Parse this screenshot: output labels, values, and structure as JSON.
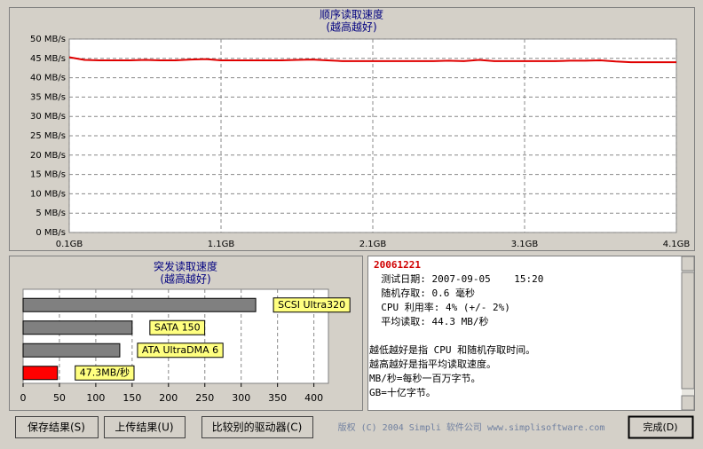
{
  "chart_data": [
    {
      "type": "line",
      "title": "顺序读取速度",
      "subtitle": "(越高越好)",
      "x": [
        0.1,
        0.2,
        0.3,
        0.4,
        0.5,
        0.6,
        0.7,
        0.8,
        0.9,
        1.0,
        1.1,
        1.2,
        1.3,
        1.4,
        1.5,
        1.6,
        1.7,
        1.8,
        1.9,
        2.0,
        2.1,
        2.2,
        2.3,
        2.4,
        2.5,
        2.6,
        2.7,
        2.8,
        2.9,
        3.0,
        3.1,
        3.2,
        3.3,
        3.4,
        3.5,
        3.6,
        3.7,
        3.8,
        3.9,
        4.0,
        4.1
      ],
      "series": [
        {
          "color": "#e00000",
          "values": [
            45.3,
            44.6,
            44.5,
            44.5,
            44.5,
            44.6,
            44.5,
            44.5,
            44.7,
            44.8,
            44.5,
            44.5,
            44.5,
            44.5,
            44.5,
            44.6,
            44.7,
            44.5,
            44.3,
            44.3,
            44.3,
            44.3,
            44.3,
            44.3,
            44.3,
            44.4,
            44.3,
            44.6,
            44.3,
            44.3,
            44.3,
            44.3,
            44.3,
            44.4,
            44.4,
            44.5,
            44.2,
            44.0,
            44.0,
            44.0,
            44.0
          ]
        }
      ],
      "xlim": [
        0.1,
        4.1
      ],
      "xticks": [
        {
          "value": 0.1,
          "label": "0.1GB"
        },
        {
          "value": 1.1,
          "label": "1.1GB"
        },
        {
          "value": 2.1,
          "label": "2.1GB"
        },
        {
          "value": 3.1,
          "label": "3.1GB"
        },
        {
          "value": 4.1,
          "label": "4.1GB"
        }
      ],
      "ylim": [
        0,
        50
      ],
      "yticks": [
        {
          "value": 0,
          "label": "0 MB/s"
        },
        {
          "value": 5,
          "label": "5 MB/s"
        },
        {
          "value": 10,
          "label": "10 MB/s"
        },
        {
          "value": 15,
          "label": "15 MB/s"
        },
        {
          "value": 20,
          "label": "20 MB/s"
        },
        {
          "value": 25,
          "label": "25 MB/s"
        },
        {
          "value": 30,
          "label": "30 MB/s"
        },
        {
          "value": 35,
          "label": "35 MB/s"
        },
        {
          "value": 40,
          "label": "40 MB/s"
        },
        {
          "value": 45,
          "label": "45 MB/s"
        },
        {
          "value": 50,
          "label": "50 MB/s"
        }
      ],
      "grid": true
    },
    {
      "type": "bar",
      "orientation": "horizontal",
      "title": "突发读取速度",
      "subtitle": "(越高越好)",
      "categories": [
        "SCSI Ultra320",
        "SATA 150",
        "ATA UltraDMA 6",
        null
      ],
      "values": [
        320,
        150,
        133,
        47.3
      ],
      "value_labels": [
        null,
        null,
        null,
        "47.3MB/秒"
      ],
      "colors": [
        "#808080",
        "#808080",
        "#808080",
        "#ff0000"
      ],
      "xlim": [
        0,
        420
      ],
      "xticks": [
        0,
        50,
        100,
        150,
        200,
        250,
        300,
        350,
        400
      ],
      "grid": true
    }
  ],
  "info": {
    "heading": "20061221",
    "lines": [
      "  测试日期: 2007-09-05    15:20",
      "  随机存取: 0.6 毫秒",
      "  CPU 利用率: 4% (+/- 2%)",
      "  平均读取: 44.3 MB/秒",
      "",
      "越低越好是指 CPU 和随机存取时间。",
      "越高越好是指平均读取速度。",
      "MB/秒=每秒一百万字节。",
      "GB=十亿字节。"
    ]
  },
  "buttons": [
    "保存结果(S)",
    "上传结果(U)",
    "比较别的驱动器(C)"
  ],
  "copyright": "版权 (C) 2004 Simpli 软件公司 www.simplisoftware.com",
  "done": "完成(D)"
}
